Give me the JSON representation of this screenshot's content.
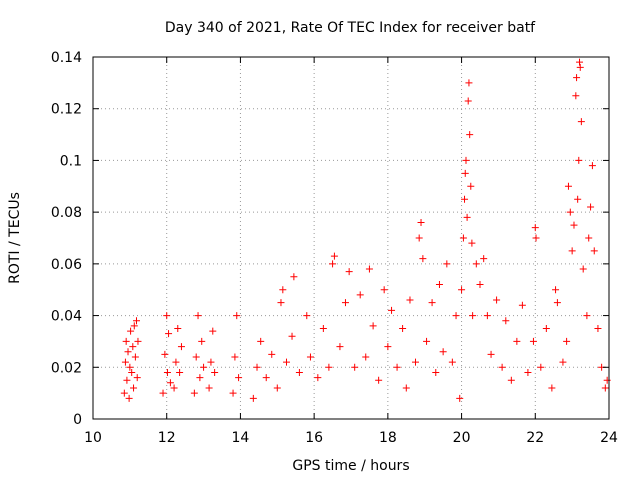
{
  "chart_data": {
    "type": "scatter",
    "title": "Day 340 of 2021, Rate Of TEC Index for receiver batf",
    "xlabel": "GPS time / hours",
    "ylabel": "ROTI / TECUs",
    "xlim": [
      10,
      24
    ],
    "ylim": [
      0,
      0.14
    ],
    "x_ticks": [
      "10",
      "12",
      "14",
      "16",
      "18",
      "20",
      "22",
      "24"
    ],
    "y_ticks": [
      "0",
      "0.02",
      "0.04",
      "0.06",
      "0.08",
      "0.1",
      "0.12",
      "0.14"
    ],
    "grid": true,
    "marker": "+",
    "marker_color": "#ff0000",
    "series": [
      {
        "name": "ROTI",
        "points": [
          [
            10.85,
            0.01
          ],
          [
            10.88,
            0.022
          ],
          [
            10.9,
            0.03
          ],
          [
            10.92,
            0.015
          ],
          [
            10.95,
            0.026
          ],
          [
            10.98,
            0.008
          ],
          [
            11.0,
            0.02
          ],
          [
            11.02,
            0.034
          ],
          [
            11.05,
            0.018
          ],
          [
            11.08,
            0.028
          ],
          [
            11.1,
            0.012
          ],
          [
            11.12,
            0.036
          ],
          [
            11.15,
            0.024
          ],
          [
            11.18,
            0.038
          ],
          [
            11.2,
            0.016
          ],
          [
            11.22,
            0.03
          ],
          [
            11.9,
            0.01
          ],
          [
            11.95,
            0.025
          ],
          [
            12.0,
            0.04
          ],
          [
            12.02,
            0.018
          ],
          [
            12.05,
            0.033
          ],
          [
            12.1,
            0.014
          ],
          [
            12.2,
            0.012
          ],
          [
            12.25,
            0.022
          ],
          [
            12.3,
            0.035
          ],
          [
            12.35,
            0.018
          ],
          [
            12.4,
            0.028
          ],
          [
            12.75,
            0.01
          ],
          [
            12.8,
            0.024
          ],
          [
            12.85,
            0.04
          ],
          [
            12.9,
            0.016
          ],
          [
            12.95,
            0.03
          ],
          [
            13.0,
            0.02
          ],
          [
            13.15,
            0.012
          ],
          [
            13.2,
            0.022
          ],
          [
            13.25,
            0.034
          ],
          [
            13.3,
            0.018
          ],
          [
            13.8,
            0.01
          ],
          [
            13.85,
            0.024
          ],
          [
            13.9,
            0.04
          ],
          [
            13.95,
            0.016
          ],
          [
            14.35,
            0.008
          ],
          [
            14.45,
            0.02
          ],
          [
            14.55,
            0.03
          ],
          [
            14.7,
            0.016
          ],
          [
            14.85,
            0.025
          ],
          [
            15.0,
            0.012
          ],
          [
            15.1,
            0.045
          ],
          [
            15.15,
            0.05
          ],
          [
            15.25,
            0.022
          ],
          [
            15.4,
            0.032
          ],
          [
            15.45,
            0.055
          ],
          [
            15.6,
            0.018
          ],
          [
            15.8,
            0.04
          ],
          [
            15.9,
            0.024
          ],
          [
            16.1,
            0.016
          ],
          [
            16.25,
            0.035
          ],
          [
            16.4,
            0.02
          ],
          [
            16.5,
            0.06
          ],
          [
            16.55,
            0.063
          ],
          [
            16.7,
            0.028
          ],
          [
            16.85,
            0.045
          ],
          [
            16.95,
            0.057
          ],
          [
            17.1,
            0.02
          ],
          [
            17.25,
            0.048
          ],
          [
            17.4,
            0.024
          ],
          [
            17.5,
            0.058
          ],
          [
            17.6,
            0.036
          ],
          [
            17.75,
            0.015
          ],
          [
            17.9,
            0.05
          ],
          [
            18.0,
            0.028
          ],
          [
            18.1,
            0.042
          ],
          [
            18.25,
            0.02
          ],
          [
            18.4,
            0.035
          ],
          [
            18.5,
            0.012
          ],
          [
            18.6,
            0.046
          ],
          [
            18.75,
            0.022
          ],
          [
            18.85,
            0.07
          ],
          [
            18.9,
            0.076
          ],
          [
            18.95,
            0.062
          ],
          [
            19.05,
            0.03
          ],
          [
            19.2,
            0.045
          ],
          [
            19.3,
            0.018
          ],
          [
            19.4,
            0.052
          ],
          [
            19.5,
            0.026
          ],
          [
            19.6,
            0.06
          ],
          [
            19.75,
            0.022
          ],
          [
            19.85,
            0.04
          ],
          [
            19.95,
            0.008
          ],
          [
            20.0,
            0.05
          ],
          [
            20.05,
            0.07
          ],
          [
            20.08,
            0.085
          ],
          [
            20.1,
            0.095
          ],
          [
            20.12,
            0.1
          ],
          [
            20.15,
            0.078
          ],
          [
            20.18,
            0.123
          ],
          [
            20.2,
            0.13
          ],
          [
            20.22,
            0.11
          ],
          [
            20.25,
            0.09
          ],
          [
            20.28,
            0.068
          ],
          [
            20.3,
            0.04
          ],
          [
            20.4,
            0.06
          ],
          [
            20.5,
            0.052
          ],
          [
            20.6,
            0.062
          ],
          [
            20.7,
            0.04
          ],
          [
            20.8,
            0.025
          ],
          [
            20.95,
            0.046
          ],
          [
            21.1,
            0.02
          ],
          [
            21.2,
            0.038
          ],
          [
            21.35,
            0.015
          ],
          [
            21.5,
            0.03
          ],
          [
            21.65,
            0.044
          ],
          [
            21.8,
            0.018
          ],
          [
            21.95,
            0.03
          ],
          [
            22.0,
            0.074
          ],
          [
            22.02,
            0.07
          ],
          [
            22.15,
            0.02
          ],
          [
            22.3,
            0.035
          ],
          [
            22.45,
            0.012
          ],
          [
            22.55,
            0.05
          ],
          [
            22.6,
            0.045
          ],
          [
            22.75,
            0.022
          ],
          [
            22.85,
            0.03
          ],
          [
            22.9,
            0.09
          ],
          [
            22.95,
            0.08
          ],
          [
            23.0,
            0.065
          ],
          [
            23.05,
            0.075
          ],
          [
            23.1,
            0.125
          ],
          [
            23.12,
            0.132
          ],
          [
            23.15,
            0.085
          ],
          [
            23.18,
            0.1
          ],
          [
            23.2,
            0.138
          ],
          [
            23.22,
            0.136
          ],
          [
            23.25,
            0.115
          ],
          [
            23.3,
            0.058
          ],
          [
            23.4,
            0.04
          ],
          [
            23.45,
            0.07
          ],
          [
            23.5,
            0.082
          ],
          [
            23.55,
            0.098
          ],
          [
            23.6,
            0.065
          ],
          [
            23.7,
            0.035
          ],
          [
            23.8,
            0.02
          ],
          [
            23.9,
            0.012
          ],
          [
            23.95,
            0.015
          ]
        ]
      }
    ]
  }
}
